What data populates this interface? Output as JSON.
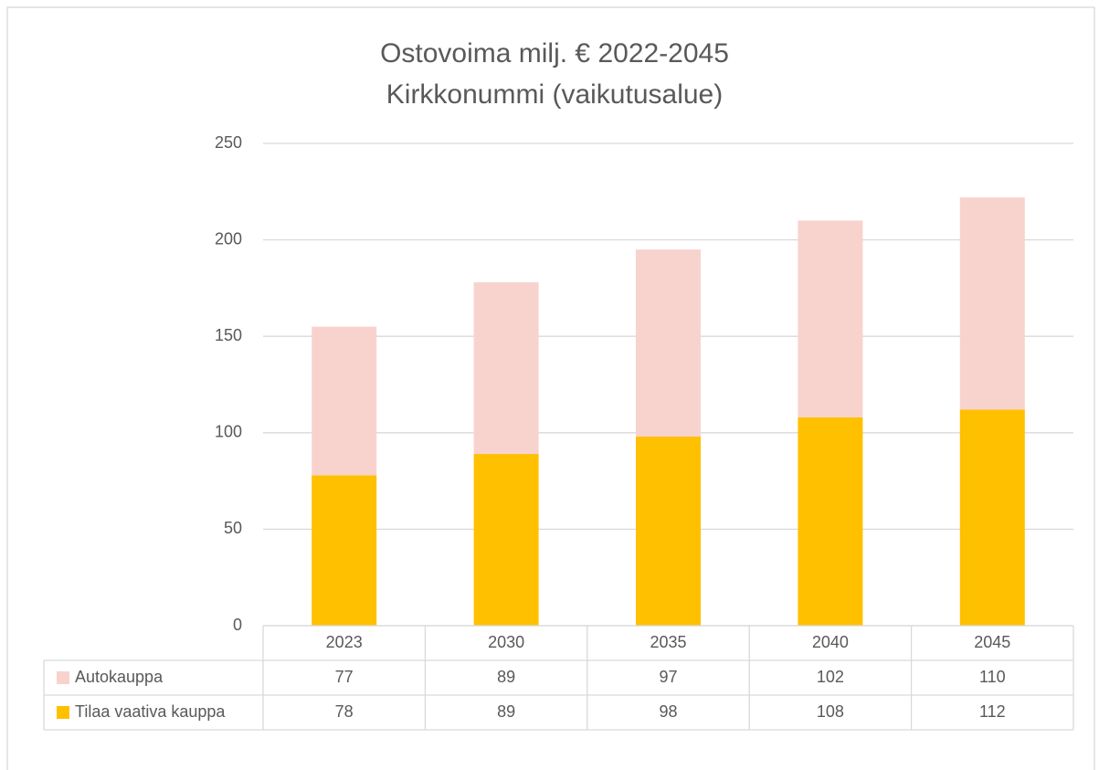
{
  "chart_data": {
    "type": "stacked_bar",
    "title": "Ostovoima milj. € 2022-2045",
    "subtitle": "Kirkkonummi (vaikutusalue)",
    "categories": [
      "2023",
      "2030",
      "2035",
      "2040",
      "2045"
    ],
    "series": [
      {
        "name": "Autokauppa",
        "color": "#f8d3cd",
        "values": [
          77,
          89,
          97,
          102,
          110
        ]
      },
      {
        "name": "Tilaa vaativa kauppa",
        "color": "#ffc000",
        "values": [
          78,
          89,
          98,
          108,
          112
        ]
      }
    ],
    "ylim": [
      0,
      250
    ],
    "yticks": [
      0,
      50,
      100,
      150,
      200,
      250
    ],
    "grid": true,
    "data_table": true
  }
}
